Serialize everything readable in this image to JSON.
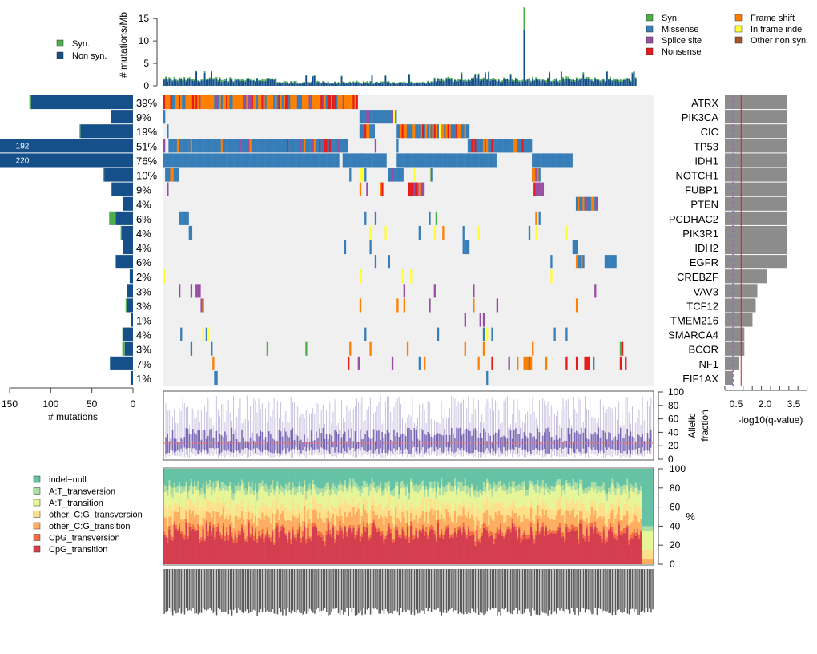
{
  "chart_data": [
    {
      "id": "tmb",
      "type": "bar",
      "title": "",
      "ylabel": "# mutations/Mb",
      "ylim": [
        0,
        17
      ],
      "yticks": [
        0,
        5,
        10,
        15
      ],
      "n_samples": 290,
      "series": [
        {
          "name": "Non syn.",
          "color": "#15508a"
        },
        {
          "name": "Syn.",
          "color": "#4aae4a"
        }
      ],
      "profile_note": "per-sample values approx 0.5-2 mutations/Mb, one outlier sample ~12.5 non syn + ~5 syn (total ~17.5)",
      "legend": [
        {
          "label": "Syn.",
          "color": "#4daf4a"
        },
        {
          "label": "Non syn.",
          "color": "#15508a"
        }
      ]
    },
    {
      "id": "oncoplot",
      "type": "heatmap",
      "genes": [
        {
          "name": "ATRX",
          "pct": "39%",
          "count_nonsyn": 124,
          "count_syn": 2,
          "neglog10q": 3.8
        },
        {
          "name": "PIK3CA",
          "pct": "9%",
          "count_nonsyn": 27,
          "count_syn": 0,
          "neglog10q": 3.8
        },
        {
          "name": "CIC",
          "pct": "19%",
          "count_nonsyn": 64,
          "count_syn": 1,
          "neglog10q": 3.8
        },
        {
          "name": "TP53",
          "pct": "51%",
          "count_nonsyn": 192,
          "count_syn": 0,
          "neglog10q": 3.8,
          "label": "192"
        },
        {
          "name": "IDH1",
          "pct": "76%",
          "count_nonsyn": 220,
          "count_syn": 0,
          "neglog10q": 3.8,
          "label": "220"
        },
        {
          "name": "NOTCH1",
          "pct": "10%",
          "count_nonsyn": 35,
          "count_syn": 1,
          "neglog10q": 3.8
        },
        {
          "name": "FUBP1",
          "pct": "9%",
          "count_nonsyn": 26,
          "count_syn": 1,
          "neglog10q": 3.8
        },
        {
          "name": "PTEN",
          "pct": "4%",
          "count_nonsyn": 12,
          "count_syn": 0,
          "neglog10q": 3.8
        },
        {
          "name": "PCDHAC2",
          "pct": "6%",
          "count_nonsyn": 21,
          "count_syn": 8,
          "neglog10q": 3.8
        },
        {
          "name": "PIK3R1",
          "pct": "4%",
          "count_nonsyn": 14,
          "count_syn": 1,
          "neglog10q": 3.8
        },
        {
          "name": "IDH2",
          "pct": "4%",
          "count_nonsyn": 12,
          "count_syn": 0,
          "neglog10q": 3.8
        },
        {
          "name": "EGFR",
          "pct": "6%",
          "count_nonsyn": 21,
          "count_syn": 0,
          "neglog10q": 3.8
        },
        {
          "name": "CREBZF",
          "pct": "2%",
          "count_nonsyn": 4,
          "count_syn": 0,
          "neglog10q": 2.6
        },
        {
          "name": "VAV3",
          "pct": "3%",
          "count_nonsyn": 7,
          "count_syn": 0,
          "neglog10q": 2.0
        },
        {
          "name": "TCF12",
          "pct": "3%",
          "count_nonsyn": 8,
          "count_syn": 1,
          "neglog10q": 1.9
        },
        {
          "name": "TMEM216",
          "pct": "1%",
          "count_nonsyn": 2,
          "count_syn": 0,
          "neglog10q": 1.7
        },
        {
          "name": "SMARCA4",
          "pct": "4%",
          "count_nonsyn": 12,
          "count_syn": 1,
          "neglog10q": 1.2
        },
        {
          "name": "BCOR",
          "pct": "3%",
          "count_nonsyn": 10,
          "count_syn": 3,
          "neglog10q": 1.2
        },
        {
          "name": "NF1",
          "pct": "7%",
          "count_nonsyn": 28,
          "count_syn": 0,
          "neglog10q": 0.85
        },
        {
          "name": "EIF1AX",
          "pct": "1%",
          "count_nonsyn": 3,
          "count_syn": 0,
          "neglog10q": 0.5
        }
      ],
      "legend": [
        {
          "label": "Syn.",
          "color": "#4daf4a"
        },
        {
          "label": "Missense",
          "color": "#377eb8"
        },
        {
          "label": "Splice site",
          "color": "#984ea3"
        },
        {
          "label": "Nonsense",
          "color": "#e41a1c"
        },
        {
          "label": "Frame shift",
          "color": "#ff7f00"
        },
        {
          "label": "In frame indel",
          "color": "#ffff33"
        },
        {
          "label": "Other non syn.",
          "color": "#a65628"
        }
      ],
      "background_color": "#f0f0f0"
    },
    {
      "id": "gene-counts",
      "type": "bar",
      "xlabel": "# mutations",
      "xticks": [
        150,
        100,
        50,
        0
      ],
      "xlim": [
        0,
        160
      ],
      "orientation": "horizontal-reversed"
    },
    {
      "id": "qvalue",
      "type": "bar",
      "xlabel": "-log10(q-value)",
      "xticks": [
        "0.5",
        "2.0",
        "3.5"
      ],
      "xlim": [
        0,
        3.8
      ],
      "threshold_solid": 1.0,
      "threshold_dashed": 0.5,
      "bar_color": "#8c8c8c"
    },
    {
      "id": "allelic-fraction",
      "type": "box",
      "ylabel": "Allelic fraction",
      "ylim": [
        0,
        100
      ],
      "yticks": [
        0,
        20,
        40,
        60,
        80,
        100
      ],
      "median_line": 22,
      "colors": {
        "box": "#7b68b5",
        "whisker": "#c8c0e0",
        "median": "#ef6f6f"
      }
    },
    {
      "id": "spectrum",
      "type": "bar",
      "stacked": true,
      "ylabel": "%",
      "ylim": [
        0,
        100
      ],
      "yticks": [
        0,
        20,
        40,
        60,
        80,
        100
      ],
      "series": [
        {
          "name": "CpG_transition",
          "color": "#d53e4f",
          "mean": 32
        },
        {
          "name": "CpG_transversion",
          "color": "#f46d43",
          "mean": 4
        },
        {
          "name": "other_C:G_transition",
          "color": "#fdae61",
          "mean": 14
        },
        {
          "name": "other_C:G_transversion",
          "color": "#fee08b",
          "mean": 12
        },
        {
          "name": "A:T_transition",
          "color": "#e6f598",
          "mean": 15
        },
        {
          "name": "A:T_transversion",
          "color": "#abdda4",
          "mean": 6
        },
        {
          "name": "indel+null",
          "color": "#66c2a5",
          "mean": 17
        }
      ]
    }
  ],
  "legends": {
    "tmb": [
      {
        "label": "Syn.",
        "color": "#4daf4a"
      },
      {
        "label": "Non syn.",
        "color": "#15508a"
      }
    ],
    "mutation_types_col1": [
      {
        "label": "Syn.",
        "color": "#4daf4a"
      },
      {
        "label": "Missense",
        "color": "#377eb8"
      },
      {
        "label": "Splice site",
        "color": "#984ea3"
      },
      {
        "label": "Nonsense",
        "color": "#e41a1c"
      }
    ],
    "mutation_types_col2": [
      {
        "label": "Frame shift",
        "color": "#ff7f00"
      },
      {
        "label": "In frame indel",
        "color": "#ffff33"
      },
      {
        "label": "Other non syn.",
        "color": "#a65628"
      }
    ],
    "spectrum": [
      {
        "label": "indel+null",
        "color": "#66c2a5"
      },
      {
        "label": "A:T_transversion",
        "color": "#abdda4"
      },
      {
        "label": "A:T_transition",
        "color": "#e6f598"
      },
      {
        "label": "other_C:G_transversion",
        "color": "#fee08b"
      },
      {
        "label": "other_C:G_transition",
        "color": "#fdae61"
      },
      {
        "label": "CpG_transversion",
        "color": "#f46d43"
      },
      {
        "label": "CpG_transition",
        "color": "#d53e4f"
      }
    ]
  },
  "labels": {
    "tmb_ylabel": "# mutations/Mb",
    "gene_xlabel": "# mutations",
    "q_xlabel": "-log10(q-value)",
    "af_ylabel1": "Allelic",
    "af_ylabel2": "fraction",
    "spectrum_ylabel": "%"
  }
}
